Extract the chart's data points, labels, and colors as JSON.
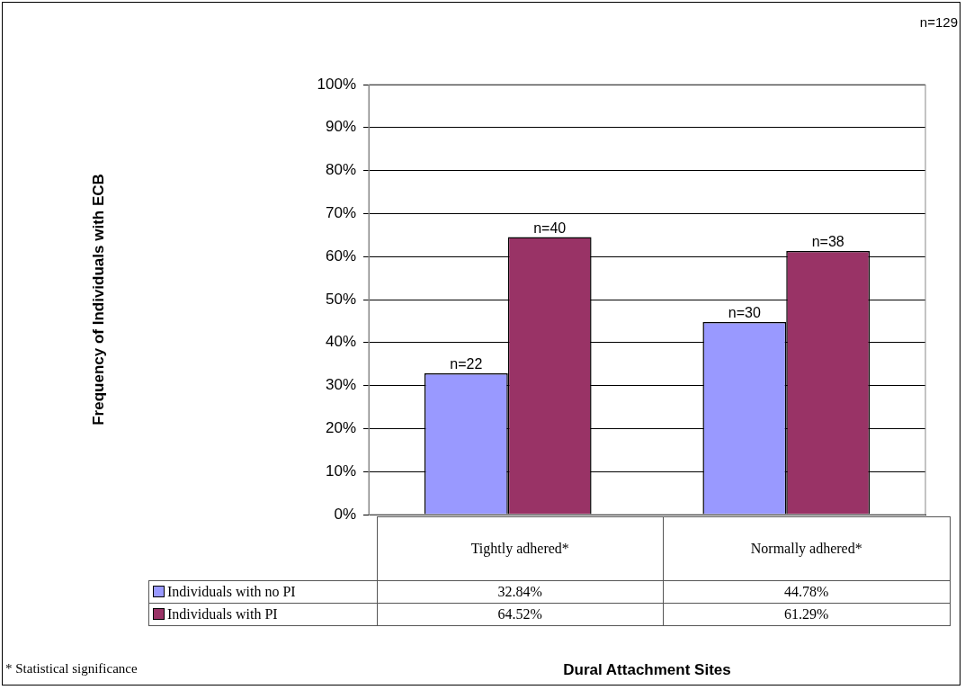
{
  "chart_data": {
    "type": "bar",
    "categories": [
      "Tightly adhered*",
      "Normally adhered*"
    ],
    "series": [
      {
        "name": "Individuals with no PI",
        "color": "#9999ff",
        "values": [
          32.84,
          44.78
        ],
        "value_labels": [
          "32.84%",
          "44.78%"
        ]
      },
      {
        "name": "Individuals with PI",
        "color": "#993366",
        "values": [
          64.52,
          61.29
        ],
        "value_labels": [
          "64.52%",
          "61.29%"
        ]
      }
    ],
    "ylim": [
      0,
      100
    ],
    "yticks": [
      {
        "value": 0,
        "label": "0%"
      },
      {
        "value": 10,
        "label": "10%"
      },
      {
        "value": 20,
        "label": "20%"
      },
      {
        "value": 30,
        "label": "30%"
      },
      {
        "value": 40,
        "label": "40%"
      },
      {
        "value": 50,
        "label": "50%"
      },
      {
        "value": 60,
        "label": "60%"
      },
      {
        "value": 70,
        "label": "70%"
      },
      {
        "value": 80,
        "label": "80%"
      },
      {
        "value": 90,
        "label": "90%"
      },
      {
        "value": 100,
        "label": "100%"
      }
    ],
    "grid": "y",
    "legend": "bottom",
    "annotations": [
      "n=129",
      "* Statistical significance",
      "Frequency of Individuals with ECB",
      "Dural Attachment Sites",
      "n=22",
      "n=40",
      "n=30",
      "n=38"
    ],
    "data_labels": true
  }
}
